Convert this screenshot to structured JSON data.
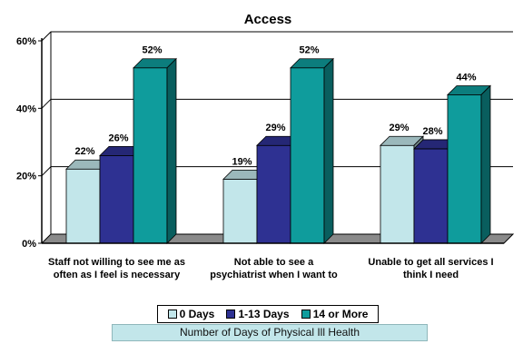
{
  "chart_data": {
    "type": "bar",
    "title": "Access",
    "categories": [
      "Staff not willing to see me as often as I feel is necessary",
      "Not able to see a psychiatrist when I want to",
      "Unable to get all services I think I need"
    ],
    "category_lines": [
      [
        "Staff not willing to see me as",
        "often as I feel is necessary"
      ],
      [
        "Not able to see a",
        "psychiatrist when I want to"
      ],
      [
        "Unable to get all services I",
        "think I need"
      ]
    ],
    "series": [
      {
        "name": "0 Days",
        "values": [
          22,
          19,
          29
        ],
        "labels": [
          "22%",
          "19%",
          "29%"
        ],
        "color": "#c2e6ea"
      },
      {
        "name": "1-13 Days",
        "values": [
          26,
          29,
          28
        ],
        "labels": [
          "26%",
          "29%",
          "28%"
        ],
        "color": "#2e3192"
      },
      {
        "name": "14 or More",
        "values": [
          52,
          52,
          44
        ],
        "labels": [
          "52%",
          "52%",
          "44%"
        ],
        "color": "#0f9c9c"
      }
    ],
    "ylim": [
      0,
      60
    ],
    "yticks": [
      0,
      20,
      40,
      60
    ],
    "ytick_labels": [
      "0%",
      "20%",
      "40%",
      "60%"
    ],
    "grid": true,
    "legend_position": "bottom",
    "legend_title": "Number of Days of Physical Ill Health"
  }
}
